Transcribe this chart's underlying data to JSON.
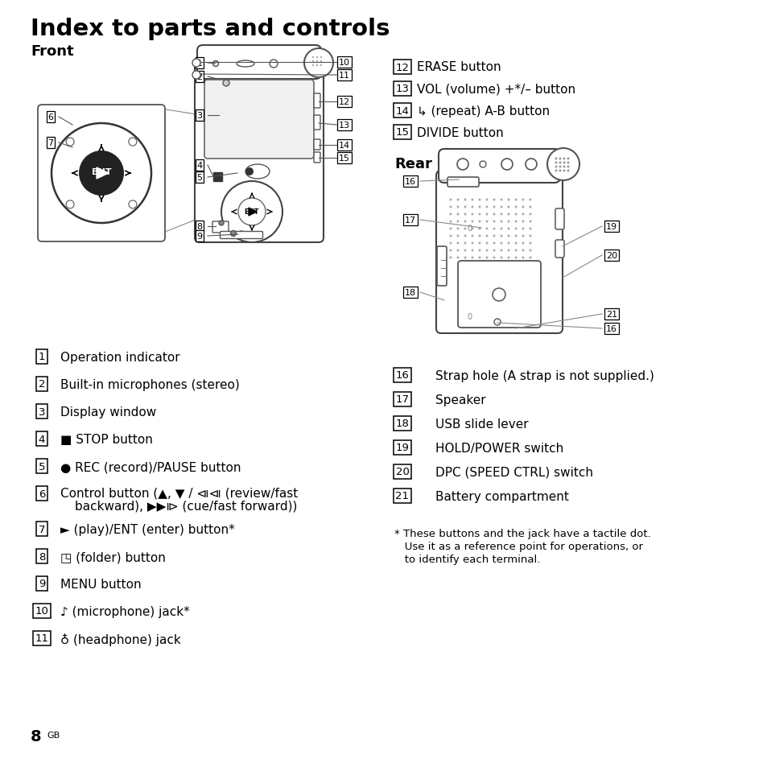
{
  "title": "Index to parts and controls",
  "bg_color": "#ffffff",
  "text_color": "#000000",
  "front_label": "Front",
  "rear_label": "Rear",
  "left_items": [
    [
      "1",
      "Operation indicator"
    ],
    [
      "2",
      "Built-in microphones (stereo)"
    ],
    [
      "3",
      "Display window"
    ],
    [
      "4",
      "■ STOP button"
    ],
    [
      "5",
      "● REC (record)/PAUSE button"
    ],
    [
      "6",
      "Control button (▲, ▼ / ⧏⧏ (review/fast",
      "backward), ▶▶⧐ (cue/fast forward))"
    ],
    [
      "7",
      "► (play)/ENT (enter) button*"
    ],
    [
      "8",
      "◳ (folder) button"
    ],
    [
      "9",
      "MENU button"
    ],
    [
      "10",
      "♪ (microphone) jack*"
    ],
    [
      "11",
      "♁ (headphone) jack"
    ]
  ],
  "right_top_items": [
    [
      "12",
      "ERASE button"
    ],
    [
      "13",
      "VOL (volume) +*/– button"
    ],
    [
      "14",
      "↳ (repeat) A-B button"
    ],
    [
      "15",
      "DIVIDE button"
    ]
  ],
  "right_bottom_items": [
    [
      "16",
      "Strap hole (A strap is not supplied.)"
    ],
    [
      "17",
      "Speaker"
    ],
    [
      "18",
      "USB slide lever"
    ],
    [
      "19",
      "HOLD/POWER switch"
    ],
    [
      "20",
      "DPC (SPEED CTRL) switch"
    ],
    [
      "21",
      "Battery compartment"
    ]
  ],
  "footnote_line1": "* These buttons and the jack have a tactile dot.",
  "footnote_line2": "   Use it as a reference point for operations, or",
  "footnote_line3": "   to identify each terminal.",
  "page_num": "8",
  "page_suffix": "GB"
}
